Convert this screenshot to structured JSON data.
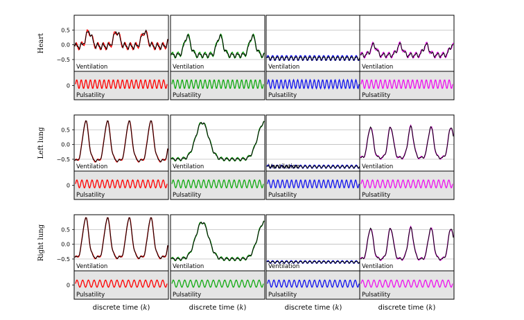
{
  "chart_data": {
    "type": "line",
    "columns": [
      {
        "color": "#ff0000",
        "xlabel_prefix": "discrete time (",
        "xlabel_var": "k",
        "xlabel_suffix": ")"
      },
      {
        "color": "#11aa11",
        "xlabel_prefix": "discrete time (",
        "xlabel_var": "k",
        "xlabel_suffix": ")"
      },
      {
        "color": "#1111ee",
        "xlabel_prefix": "discrete time (",
        "xlabel_var": "k",
        "xlabel_suffix": ")"
      },
      {
        "color": "#ee11ee",
        "xlabel_prefix": "discrete time (",
        "xlabel_var": "k",
        "xlabel_suffix": ")"
      }
    ],
    "reference_color": "#000000",
    "rows": [
      {
        "label": "Heart",
        "ventilation_label": "Ventilation",
        "pulsatility_label": "Pulsatility",
        "yticks": [
          "0.5",
          "0.0",
          "−0.5"
        ],
        "ytick_values": [
          0.5,
          0.0,
          -0.5
        ],
        "ylim": [
          -0.9,
          1.0
        ],
        "pulsatility_ytick": "0",
        "ventilation": [
          {
            "base": -0.05,
            "amp": 0.5,
            "period": 36,
            "peak_width": 0.22,
            "ripple_amp": 0.12,
            "ripple_period": 7
          },
          {
            "base": -0.35,
            "amp": 0.65,
            "period": 42,
            "peak_width": 0.2,
            "ripple_amp": 0.1,
            "ripple_period": 7
          },
          {
            "base": -0.45,
            "amp": 0.0,
            "period": 40,
            "peak_width": 0.2,
            "ripple_amp": 0.09,
            "ripple_period": 6
          },
          {
            "base": -0.35,
            "amp": 0.35,
            "period": 34,
            "peak_width": 0.22,
            "ripple_amp": 0.1,
            "ripple_period": 7
          }
        ],
        "pulsatility": {
          "amp": 0.55,
          "cycles": 20
        }
      },
      {
        "label": "Left lung",
        "ventilation_label": "Ventilation",
        "pulsatility_label": "Pulsatility",
        "yticks": [
          "0.5",
          "0.0",
          "−0.5"
        ],
        "ytick_values": [
          0.5,
          0.0,
          -0.5
        ],
        "ylim": [
          -0.9,
          1.0
        ],
        "pulsatility_ytick": "0",
        "ventilation": [
          {
            "base": -0.55,
            "amp": 1.35,
            "period": 28,
            "peak_width": 0.28,
            "ripple_amp": 0.05,
            "ripple_period": 7
          },
          {
            "base": -0.5,
            "amp": 1.25,
            "period": 80,
            "peak_width": 0.22,
            "ripple_amp": 0.06,
            "ripple_period": 7
          },
          {
            "base": -0.75,
            "amp": 0.0,
            "period": 40,
            "peak_width": 0.2,
            "ripple_amp": 0.06,
            "ripple_period": 6
          },
          {
            "base": -0.45,
            "amp": 1.05,
            "period": 26,
            "peak_width": 0.28,
            "ripple_amp": 0.05,
            "ripple_period": 7
          }
        ],
        "pulsatility": {
          "amp": 0.5,
          "cycles": 18
        }
      },
      {
        "label": "Right lung",
        "ventilation_label": "Ventilation",
        "pulsatility_label": "Pulsatility",
        "yticks": [
          "0.5",
          "0.0",
          "−0.5"
        ],
        "ytick_values": [
          0.5,
          0.0,
          -0.5
        ],
        "ylim": [
          -0.9,
          1.0
        ],
        "pulsatility_ytick": "0",
        "ventilation": [
          {
            "base": -0.45,
            "amp": 1.35,
            "period": 28,
            "peak_width": 0.28,
            "ripple_amp": 0.05,
            "ripple_period": 7
          },
          {
            "base": -0.5,
            "amp": 1.25,
            "period": 80,
            "peak_width": 0.22,
            "ripple_amp": 0.06,
            "ripple_period": 7
          },
          {
            "base": -0.6,
            "amp": 0.0,
            "period": 40,
            "peak_width": 0.2,
            "ripple_amp": 0.05,
            "ripple_period": 6
          },
          {
            "base": -0.5,
            "amp": 1.05,
            "period": 26,
            "peak_width": 0.28,
            "ripple_amp": 0.05,
            "ripple_period": 7
          }
        ],
        "pulsatility": {
          "amp": 0.45,
          "cycles": 16
        }
      }
    ],
    "samples": 120,
    "grid": true,
    "pulsatility_background": "#e4e4e4"
  }
}
